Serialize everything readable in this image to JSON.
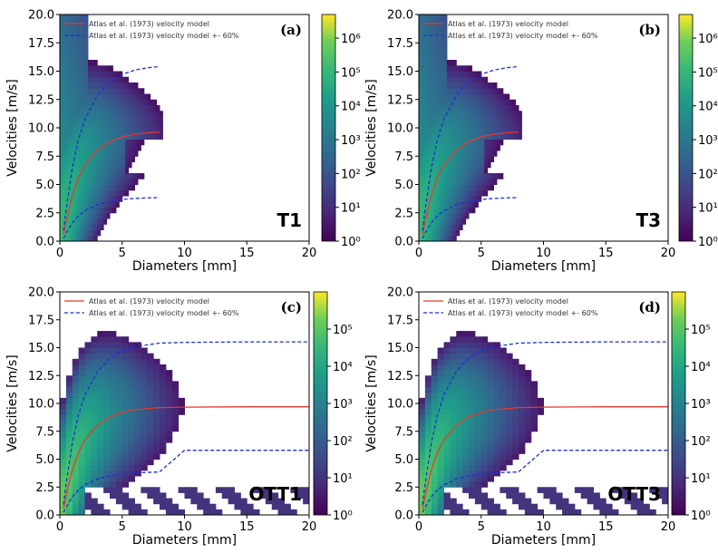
{
  "chart_data": [
    {
      "type": "heatmap",
      "panel_letter": "(a)",
      "panel_name": "T1",
      "xlabel": "Diameters [mm]",
      "ylabel": "Velocities [m/s]",
      "xlim": [
        0,
        20
      ],
      "ylim": [
        0,
        20
      ],
      "xticks": [
        0,
        5,
        10,
        15,
        20
      ],
      "yticks": [
        0.0,
        2.5,
        5.0,
        7.5,
        10.0,
        12.5,
        15.0,
        17.5,
        20.0
      ],
      "colorbar": {
        "scale": "log",
        "range": [
          1,
          5000000
        ],
        "tick_labels": [
          "10⁰",
          "10¹",
          "10²",
          "10³",
          "10⁴",
          "10⁵",
          "10⁶"
        ]
      },
      "legend": {
        "placement": "top-left",
        "entries": [
          "Atlas et al. (1973) velocity model",
          "Atlas et al. (1973) velocity model +- 60%"
        ]
      },
      "series": [
        {
          "name": "Atlas et al. (1973) velocity model",
          "color": "#e8392b",
          "style": "solid",
          "x": [
            0.3,
            0.5,
            1,
            1.5,
            2,
            3,
            4,
            5,
            6,
            7,
            8
          ],
          "y": [
            0.57,
            1.72,
            4.04,
            5.62,
            6.71,
            8.03,
            8.78,
            9.2,
            9.43,
            9.56,
            9.63
          ]
        },
        {
          "name": "Atlas et al. (1973) velocity model +- 60%",
          "color": "#1f2fd6",
          "style": "dashed",
          "x": [
            0.3,
            0.5,
            1,
            1.5,
            2,
            3,
            4,
            5,
            6,
            7,
            8
          ],
          "y": [
            0.91,
            2.75,
            6.46,
            8.99,
            10.74,
            12.85,
            14.05,
            14.72,
            15.09,
            15.3,
            15.41
          ]
        },
        {
          "name": "",
          "color": "#1f2fd6",
          "style": "dashed",
          "x": [
            0.3,
            0.5,
            1,
            1.5,
            2,
            3,
            4,
            5,
            6,
            7,
            8
          ],
          "y": [
            0.23,
            0.69,
            1.62,
            2.25,
            2.68,
            3.21,
            3.51,
            3.68,
            3.77,
            3.82,
            3.85
          ]
        }
      ]
    },
    {
      "type": "heatmap",
      "panel_letter": "(b)",
      "panel_name": "T3",
      "xlabel": "Diameters [mm]",
      "ylabel": "Velocities [m/s]",
      "xlim": [
        0,
        20
      ],
      "ylim": [
        0,
        20
      ],
      "xticks": [
        0,
        5,
        10,
        15,
        20
      ],
      "yticks": [
        0.0,
        2.5,
        5.0,
        7.5,
        10.0,
        12.5,
        15.0,
        17.5,
        20.0
      ],
      "colorbar": {
        "scale": "log",
        "range": [
          1,
          5000000
        ],
        "tick_labels": [
          "10⁰",
          "10¹",
          "10²",
          "10³",
          "10⁴",
          "10⁵",
          "10⁶"
        ]
      },
      "legend": {
        "placement": "top-left",
        "entries": [
          "Atlas et al. (1973) velocity model",
          "Atlas et al. (1973) velocity model +- 60%"
        ]
      },
      "series": [
        {
          "name": "Atlas et al. (1973) velocity model",
          "color": "#e8392b",
          "style": "solid",
          "x": [
            0.3,
            0.5,
            1,
            1.5,
            2,
            3,
            4,
            5,
            6,
            7,
            8
          ],
          "y": [
            0.57,
            1.72,
            4.04,
            5.62,
            6.71,
            8.03,
            8.78,
            9.2,
            9.43,
            9.56,
            9.63
          ]
        },
        {
          "name": "Atlas et al. (1973) velocity model +- 60%",
          "color": "#1f2fd6",
          "style": "dashed",
          "x": [
            0.3,
            0.5,
            1,
            1.5,
            2,
            3,
            4,
            5,
            6,
            7,
            8
          ],
          "y": [
            0.91,
            2.75,
            6.46,
            8.99,
            10.74,
            12.85,
            14.05,
            14.72,
            15.09,
            15.3,
            15.41
          ]
        },
        {
          "name": "",
          "color": "#1f2fd6",
          "style": "dashed",
          "x": [
            0.3,
            0.5,
            1,
            1.5,
            2,
            3,
            4,
            5,
            6,
            7,
            8
          ],
          "y": [
            0.23,
            0.69,
            1.62,
            2.25,
            2.68,
            3.21,
            3.51,
            3.68,
            3.77,
            3.82,
            3.85
          ]
        }
      ]
    },
    {
      "type": "heatmap",
      "panel_letter": "(c)",
      "panel_name": "OTT1",
      "xlabel": "Diameters [mm]",
      "ylabel": "Velocities [m/s]",
      "xlim": [
        0,
        20
      ],
      "ylim": [
        0,
        20
      ],
      "xticks": [
        0,
        5,
        10,
        15,
        20
      ],
      "yticks": [
        0.0,
        2.5,
        5.0,
        7.5,
        10.0,
        12.5,
        15.0,
        17.5,
        20.0
      ],
      "colorbar": {
        "scale": "log",
        "range": [
          1,
          1000000
        ],
        "tick_labels": [
          "10⁰",
          "10¹",
          "10²",
          "10³",
          "10⁴",
          "10⁵"
        ]
      },
      "legend": {
        "placement": "top-left",
        "entries": [
          "Atlas et al. (1973) velocity model",
          "Atlas et al. (1973) velocity model +- 60%"
        ]
      },
      "series": [
        {
          "name": "Atlas et al. (1973) velocity model",
          "color": "#e8392b",
          "style": "solid",
          "x": [
            0.3,
            0.5,
            1,
            1.5,
            2,
            3,
            4,
            5,
            6,
            8,
            10,
            15,
            20
          ],
          "y": [
            0.57,
            1.72,
            4.04,
            5.62,
            6.71,
            8.03,
            8.78,
            9.2,
            9.43,
            9.63,
            9.67,
            9.7,
            9.7
          ]
        },
        {
          "name": "Atlas et al. (1973) velocity model +- 60%",
          "color": "#1f2fd6",
          "style": "dashed",
          "x": [
            0.3,
            0.5,
            1,
            1.5,
            2,
            3,
            4,
            5,
            6,
            8,
            10,
            15,
            20
          ],
          "y": [
            0.91,
            2.75,
            6.46,
            8.99,
            10.74,
            12.85,
            14.05,
            14.72,
            15.09,
            15.41,
            15.47,
            15.52,
            15.52
          ]
        },
        {
          "name": "",
          "color": "#1f2fd6",
          "style": "dashed",
          "x": [
            0.3,
            0.5,
            1,
            1.5,
            2,
            3,
            4,
            5,
            6,
            8,
            10,
            15,
            20
          ],
          "y": [
            0.23,
            0.69,
            1.62,
            2.25,
            2.68,
            3.21,
            3.51,
            3.68,
            3.77,
            3.85,
            5.8,
            5.8,
            5.8
          ]
        }
      ]
    },
    {
      "type": "heatmap",
      "panel_letter": "(d)",
      "panel_name": "OTT3",
      "xlabel": "Diameters [mm]",
      "ylabel": "Velocities [m/s]",
      "xlim": [
        0,
        20
      ],
      "ylim": [
        0,
        20
      ],
      "xticks": [
        0,
        5,
        10,
        15,
        20
      ],
      "yticks": [
        0.0,
        2.5,
        5.0,
        7.5,
        10.0,
        12.5,
        15.0,
        17.5,
        20.0
      ],
      "colorbar": {
        "scale": "log",
        "range": [
          1,
          1000000
        ],
        "tick_labels": [
          "10⁰",
          "10¹",
          "10²",
          "10³",
          "10⁴",
          "10⁵"
        ]
      },
      "legend": {
        "placement": "top-left",
        "entries": [
          "Atlas et al. (1973) velocity model",
          "Atlas et al. (1973) velocity model +- 60%"
        ]
      },
      "series": [
        {
          "name": "Atlas et al. (1973) velocity model",
          "color": "#e8392b",
          "style": "solid",
          "x": [
            0.3,
            0.5,
            1,
            1.5,
            2,
            3,
            4,
            5,
            6,
            8,
            10,
            15,
            20
          ],
          "y": [
            0.57,
            1.72,
            4.04,
            5.62,
            6.71,
            8.03,
            8.78,
            9.2,
            9.43,
            9.63,
            9.67,
            9.7,
            9.7
          ]
        },
        {
          "name": "Atlas et al. (1973) velocity model +- 60%",
          "color": "#1f2fd6",
          "style": "dashed",
          "x": [
            0.3,
            0.5,
            1,
            1.5,
            2,
            3,
            4,
            5,
            6,
            8,
            10,
            15,
            20
          ],
          "y": [
            0.91,
            2.75,
            6.46,
            8.99,
            10.74,
            12.85,
            14.05,
            14.72,
            15.09,
            15.41,
            15.47,
            15.52,
            15.52
          ]
        },
        {
          "name": "",
          "color": "#1f2fd6",
          "style": "dashed",
          "x": [
            0.3,
            0.5,
            1,
            1.5,
            2,
            3,
            4,
            5,
            6,
            8,
            10,
            15,
            20
          ],
          "y": [
            0.23,
            0.69,
            1.62,
            2.25,
            2.68,
            3.21,
            3.51,
            3.68,
            3.77,
            3.85,
            5.8,
            5.8,
            5.8
          ]
        }
      ]
    }
  ]
}
